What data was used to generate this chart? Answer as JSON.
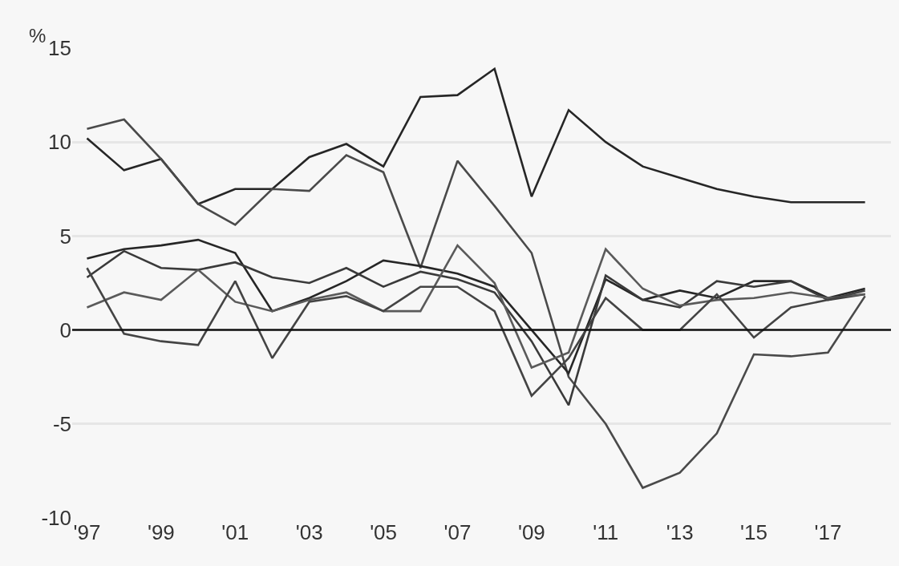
{
  "chart_data": {
    "type": "line",
    "ylabel": "%",
    "x": [
      1997,
      1998,
      1999,
      2000,
      2001,
      2002,
      2003,
      2004,
      2005,
      2006,
      2007,
      2008,
      2009,
      2010,
      2011,
      2012,
      2013,
      2014,
      2015,
      2016,
      2017,
      2018
    ],
    "series": [
      {
        "color": "#262626",
        "values": [
          10.2,
          8.5,
          9.1,
          6.7,
          7.5,
          7.5,
          9.2,
          9.9,
          8.7,
          12.4,
          12.5,
          13.9,
          7.1,
          11.7,
          10.0,
          8.7,
          8.1,
          7.5,
          7.1,
          6.8,
          6.8,
          6.8
        ]
      },
      {
        "color": "#4a4a4a",
        "values": [
          10.7,
          11.2,
          9.1,
          6.7,
          5.6,
          7.5,
          7.4,
          9.3,
          8.4,
          3.3,
          9.0,
          6.6,
          4.1,
          -2.5,
          -5.0,
          -8.4,
          -7.6,
          -5.5,
          -1.3,
          -1.4,
          -1.2,
          1.8
        ]
      },
      {
        "color": "#262626",
        "values": [
          3.8,
          4.3,
          4.5,
          4.8,
          4.1,
          1.0,
          1.7,
          2.6,
          3.7,
          3.4,
          3.0,
          2.3,
          0.0,
          -2.3,
          2.7,
          1.6,
          2.1,
          1.7,
          2.6,
          2.6,
          1.7,
          2.2
        ]
      },
      {
        "color": "#3a3a3a",
        "values": [
          2.8,
          4.2,
          3.3,
          3.2,
          3.6,
          2.8,
          2.5,
          3.3,
          2.3,
          3.1,
          2.7,
          2.0,
          -0.6,
          -4.0,
          2.9,
          1.6,
          1.2,
          2.6,
          2.3,
          2.6,
          1.6,
          1.9
        ]
      },
      {
        "color": "#5a5a5a",
        "values": [
          1.2,
          2.0,
          1.6,
          3.2,
          1.5,
          1.0,
          1.6,
          2.0,
          1.0,
          1.0,
          4.5,
          2.5,
          -2.0,
          -1.2,
          4.3,
          2.2,
          1.3,
          1.6,
          1.7,
          2.0,
          1.7,
          1.9
        ]
      },
      {
        "color": "#444444",
        "values": [
          3.3,
          -0.2,
          -0.6,
          -0.8,
          2.6,
          -1.5,
          1.5,
          1.8,
          1.0,
          2.3,
          2.3,
          1.0,
          -3.5,
          -1.5,
          1.7,
          0.0,
          0.0,
          1.9,
          -0.4,
          1.2,
          1.6,
          2.1
        ]
      }
    ],
    "xlim": [
      1996.6,
      2018.7
    ],
    "xticks": [
      {
        "value": 1997,
        "label": "'97"
      },
      {
        "value": 1999,
        "label": "'99"
      },
      {
        "value": 2001,
        "label": "'01"
      },
      {
        "value": 2003,
        "label": "'03"
      },
      {
        "value": 2005,
        "label": "'05"
      },
      {
        "value": 2007,
        "label": "'07"
      },
      {
        "value": 2009,
        "label": "'09"
      },
      {
        "value": 2011,
        "label": "'11"
      },
      {
        "value": 2013,
        "label": "'13"
      },
      {
        "value": 2015,
        "label": "'15"
      },
      {
        "value": 2017,
        "label": "'17"
      }
    ],
    "ylim": [
      -10,
      15
    ],
    "yticks": [
      -10,
      -5,
      0,
      5,
      10,
      15
    ],
    "ref_lines": [
      {
        "axis": "y",
        "value": 0,
        "color": "#111111"
      }
    ],
    "grid": "y",
    "marker": "none",
    "line_style": "solid"
  }
}
